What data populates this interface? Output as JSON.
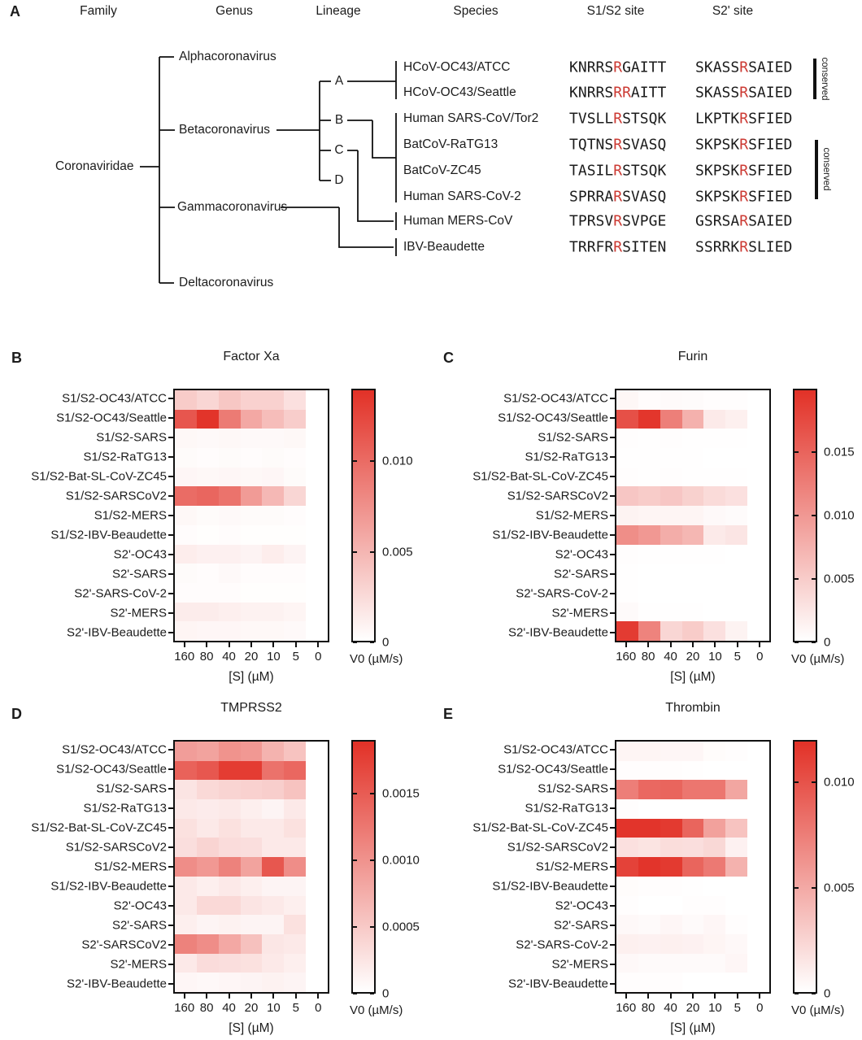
{
  "colors": {
    "heat_max": "#e23127",
    "red_residue": "#cc3a33",
    "ink": "#111111"
  },
  "panel_a": {
    "label": "A",
    "headers": [
      "Family",
      "Genus",
      "Lineage",
      "Species",
      "S1/S2 site",
      "S2' site"
    ],
    "family": "Coronaviridae",
    "genera": [
      "Alphacoronavirus",
      "Betacoronavirus",
      "Gammacoronavirus",
      "Deltacoronavirus"
    ],
    "lineages": [
      "A",
      "B",
      "C",
      "D"
    ],
    "conserved_label": "conserved",
    "species_rows": [
      {
        "species": "HCoV-OC43/ATCC",
        "s1s2": "KNRRSRGAITT",
        "s1s2_red": [
          5
        ],
        "s2prime": "SKASSRSAIED",
        "s2prime_red": [
          5
        ]
      },
      {
        "species": "HCoV-OC43/Seattle",
        "s1s2": "KNRRSRRAITT",
        "s1s2_red": [
          5,
          6
        ],
        "s2prime": "SKASSRSAIED",
        "s2prime_red": [
          5
        ]
      },
      {
        "species": "Human SARS-CoV/Tor2",
        "s1s2": "TVSLLRSTSQK",
        "s1s2_red": [
          5
        ],
        "s2prime": "LKPTKRSFIED",
        "s2prime_red": [
          5
        ]
      },
      {
        "species": "BatCoV-RaTG13",
        "s1s2": "TQTNSRSVASQ",
        "s1s2_red": [
          5
        ],
        "s2prime": "SKPSKRSFIED",
        "s2prime_red": [
          5
        ]
      },
      {
        "species": "BatCoV-ZC45",
        "s1s2": "TASILRSTSQK",
        "s1s2_red": [
          5
        ],
        "s2prime": "SKPSKRSFIED",
        "s2prime_red": [
          5
        ]
      },
      {
        "species": "Human SARS-CoV-2",
        "s1s2": "SPRRARSVASQ",
        "s1s2_red": [
          5
        ],
        "s2prime": "SKPSKRSFIED",
        "s2prime_red": [
          5
        ]
      },
      {
        "species": "Human MERS-CoV",
        "s1s2": "TPRSVRSVPGE",
        "s1s2_red": [
          5
        ],
        "s2prime": "GSRSARSAIED",
        "s2prime_red": [
          5
        ]
      },
      {
        "species": "IBV-Beaudette",
        "s1s2": "TRRFRRSITEN",
        "s1s2_red": [
          5
        ],
        "s2prime": "SSRRKRSLIED",
        "s2prime_red": [
          5
        ]
      }
    ]
  },
  "chart_data": [
    {
      "type": "heatmap",
      "panel_label": "B",
      "title": "Factor Xa",
      "xlabel": "[S] (µM)",
      "x_categories": [
        "160",
        "80",
        "40",
        "20",
        "10",
        "5",
        "0"
      ],
      "colorbar": {
        "label": "V0 (µM/s)",
        "vmin": 0,
        "vmax": 0.014,
        "tick_values": [
          0.01,
          0.005,
          0
        ],
        "tick_labels": [
          "0.010",
          "0.005",
          "0"
        ]
      },
      "rows": [
        {
          "label": "S1/S2-OC43/ATCC",
          "values": [
            0.0035,
            0.0028,
            0.0038,
            0.0031,
            0.0031,
            0.0021,
            0
          ]
        },
        {
          "label": "S1/S2-OC43/Seattle",
          "values": [
            0.0115,
            0.0138,
            0.009,
            0.0059,
            0.0045,
            0.0034,
            0
          ]
        },
        {
          "label": "S1/S2-SARS",
          "values": [
            0.0005,
            0.0004,
            0.0005,
            0.0004,
            0.0004,
            0.0005,
            0
          ]
        },
        {
          "label": "S1/S2-RaTG13",
          "values": [
            0.0003,
            0.0002,
            0.0003,
            0.0002,
            0.0003,
            0.0002,
            0
          ]
        },
        {
          "label": "S1/S2-Bat-SL-CoV-ZC45",
          "values": [
            0.0006,
            0.0005,
            0.0006,
            0.0005,
            0.0006,
            0.0003,
            0
          ]
        },
        {
          "label": "S1/S2-SARSCoV2",
          "values": [
            0.01,
            0.0104,
            0.0095,
            0.0068,
            0.0048,
            0.0028,
            0
          ]
        },
        {
          "label": "S1/S2-MERS",
          "values": [
            0.0005,
            0.0003,
            0.0004,
            0.0003,
            0.0003,
            0.0002,
            0
          ]
        },
        {
          "label": "S1/S2-IBV-Beaudette",
          "values": [
            0.0002,
            0.0001,
            0.0002,
            0.0001,
            0.0001,
            0.0001,
            0
          ]
        },
        {
          "label": "S2'-OC43",
          "values": [
            0.0012,
            0.001,
            0.001,
            0.0008,
            0.0012,
            0.0008,
            0
          ]
        },
        {
          "label": "S2'-SARS",
          "values": [
            0.0003,
            0.0002,
            0.0004,
            0.0002,
            0.0002,
            0.0002,
            0
          ]
        },
        {
          "label": "S2'-SARS-CoV-2",
          "values": [
            0.0002,
            0.0002,
            0.0002,
            0.0001,
            0.0001,
            0.0001,
            0
          ]
        },
        {
          "label": "S2'-MERS",
          "values": [
            0.0013,
            0.0013,
            0.0011,
            0.0009,
            0.0009,
            0.0007,
            0
          ]
        },
        {
          "label": "S2'-IBV-Beaudette",
          "values": [
            0.0007,
            0.0006,
            0.0006,
            0.0005,
            0.0005,
            0.0004,
            0
          ]
        }
      ]
    },
    {
      "type": "heatmap",
      "panel_label": "C",
      "title": "Furin",
      "xlabel": "[S] (µM)",
      "x_categories": [
        "160",
        "80",
        "40",
        "20",
        "10",
        "5",
        "0"
      ],
      "colorbar": {
        "label": "V0 (µM/s)",
        "vmin": 0,
        "vmax": 0.02,
        "tick_values": [
          0.015,
          0.01,
          0.005,
          0
        ],
        "tick_labels": [
          "0.015",
          "0.010",
          "0.005",
          "0"
        ]
      },
      "rows": [
        {
          "label": "S1/S2-OC43/ATCC",
          "values": [
            0.0008,
            0.0003,
            0.0005,
            0.0004,
            0.0002,
            0.0002,
            0
          ]
        },
        {
          "label": "S1/S2-OC43/Seattle",
          "values": [
            0.017,
            0.0195,
            0.0124,
            0.0076,
            0.002,
            0.0015,
            0
          ]
        },
        {
          "label": "S1/S2-SARS",
          "values": [
            0.0002,
            0.0001,
            0.0002,
            0.0001,
            0.0001,
            0.0001,
            0
          ]
        },
        {
          "label": "S1/S2-RaTG13",
          "values": [
            0.0001,
            0.0001,
            0.0001,
            0.0001,
            0,
            0,
            0
          ]
        },
        {
          "label": "S1/S2-Bat-SL-CoV-ZC45",
          "values": [
            0.0002,
            0.0001,
            0.0002,
            0.0001,
            0.0001,
            0.0001,
            0
          ]
        },
        {
          "label": "S1/S2-SARSCoV2",
          "values": [
            0.0055,
            0.005,
            0.0055,
            0.0045,
            0.0035,
            0.003,
            0
          ]
        },
        {
          "label": "S1/S2-MERS",
          "values": [
            0.0012,
            0.001,
            0.001,
            0.001,
            0.0006,
            0.0004,
            0
          ]
        },
        {
          "label": "S1/S2-IBV-Beaudette",
          "values": [
            0.011,
            0.01,
            0.008,
            0.007,
            0.002,
            0.0025,
            0
          ]
        },
        {
          "label": "S2'-OC43",
          "values": [
            0.0002,
            0.0001,
            0.0001,
            0.0001,
            0.0001,
            0,
            0
          ]
        },
        {
          "label": "S2'-SARS",
          "values": [
            0.0001,
            0,
            0,
            0,
            0,
            0,
            0
          ]
        },
        {
          "label": "S2'-SARS-CoV-2",
          "values": [
            0.0001,
            0,
            0,
            0,
            0,
            0,
            0
          ]
        },
        {
          "label": "S2'-MERS",
          "values": [
            0.0005,
            0.0001,
            0.0001,
            0.0001,
            0,
            0,
            0
          ]
        },
        {
          "label": "S2'-IBV-Beaudette",
          "values": [
            0.019,
            0.012,
            0.004,
            0.005,
            0.003,
            0.0012,
            0
          ]
        }
      ]
    },
    {
      "type": "heatmap",
      "panel_label": "D",
      "title": "TMPRSS2",
      "xlabel": "[S] (µM)",
      "x_categories": [
        "160",
        "80",
        "40",
        "20",
        "10",
        "5",
        "0"
      ],
      "colorbar": {
        "label": "V0 (µM/s)",
        "vmin": 0,
        "vmax": 0.0019,
        "tick_values": [
          0.0015,
          0.001,
          0.0005,
          0
        ],
        "tick_labels": [
          "0.0015",
          "0.0010",
          "0.0005",
          "0"
        ]
      },
      "rows": [
        {
          "label": "S1/S2-OC43/ATCC",
          "values": [
            0.0009,
            0.00085,
            0.001,
            0.00095,
            0.0007,
            0.00055,
            0
          ]
        },
        {
          "label": "S1/S2-OC43/Seattle",
          "values": [
            0.00145,
            0.00155,
            0.0018,
            0.0018,
            0.0013,
            0.0014,
            0
          ]
        },
        {
          "label": "S1/S2-SARS",
          "values": [
            0.00025,
            0.00035,
            0.0004,
            0.00042,
            0.00045,
            0.00055,
            0
          ]
        },
        {
          "label": "S1/S2-RaTG13",
          "values": [
            0.0002,
            0.00018,
            0.0002,
            0.00015,
            0.0001,
            0.0002,
            0
          ]
        },
        {
          "label": "S1/S2-Bat-SL-CoV-ZC45",
          "values": [
            0.00028,
            0.0002,
            0.00028,
            0.0002,
            0.0002,
            0.00028,
            0
          ]
        },
        {
          "label": "S1/S2-SARSCoV2",
          "values": [
            0.0003,
            0.0004,
            0.00032,
            0.0003,
            0.0002,
            0.0002,
            0
          ]
        },
        {
          "label": "S1/S2-MERS",
          "values": [
            0.00105,
            0.00095,
            0.00115,
            0.00085,
            0.00155,
            0.00105,
            0
          ]
        },
        {
          "label": "S1/S2-IBV-Beaudette",
          "values": [
            0.0002,
            0.00015,
            0.0002,
            0.00015,
            0.0001,
            0.0001,
            0
          ]
        },
        {
          "label": "S2'-OC43",
          "values": [
            0.0002,
            0.00035,
            0.00035,
            0.00025,
            0.0002,
            0.00015,
            0
          ]
        },
        {
          "label": "S2'-SARS",
          "values": [
            0.00015,
            0.0001,
            0.00012,
            0.0001,
            0.0001,
            0.00028,
            0
          ]
        },
        {
          "label": "S2'-SARSCoV2",
          "values": [
            0.00115,
            0.00105,
            0.0008,
            0.00057,
            0.00023,
            0.0002,
            0
          ]
        },
        {
          "label": "S2'-MERS",
          "values": [
            0.0002,
            0.00032,
            0.0003,
            0.00028,
            0.0002,
            0.00015,
            0
          ]
        },
        {
          "label": "S2'-IBV-Beaudette",
          "values": [
            8e-05,
            6e-05,
            8e-05,
            0.0001,
            0.00012,
            0.0001,
            0
          ]
        }
      ]
    },
    {
      "type": "heatmap",
      "panel_label": "E",
      "title": "Thrombin",
      "xlabel": "[S] (µM)",
      "x_categories": [
        "160",
        "80",
        "40",
        "20",
        "10",
        "5",
        "0"
      ],
      "colorbar": {
        "label": "V0 (µM/s)",
        "vmin": 0,
        "vmax": 0.012,
        "tick_values": [
          0.01,
          0.005,
          0
        ],
        "tick_labels": [
          "0.010",
          "0.005",
          "0"
        ]
      },
      "rows": [
        {
          "label": "S1/S2-OC43/ATCC",
          "values": [
            0.0006,
            0.0006,
            0.0005,
            0.0005,
            0.0002,
            0.0001,
            0
          ]
        },
        {
          "label": "S1/S2-OC43/Seattle",
          "values": [
            0.0001,
            0.0001,
            0.0001,
            5e-05,
            0,
            0,
            0
          ]
        },
        {
          "label": "S1/S2-SARS",
          "values": [
            0.0075,
            0.0088,
            0.009,
            0.008,
            0.008,
            0.0052,
            0
          ]
        },
        {
          "label": "S1/S2-RaTG13",
          "values": [
            0.0001,
            0,
            0,
            0,
            0,
            0,
            0
          ]
        },
        {
          "label": "S1/S2-Bat-SL-CoV-ZC45",
          "values": [
            0.0118,
            0.0118,
            0.0115,
            0.009,
            0.0055,
            0.0035,
            0
          ]
        },
        {
          "label": "S1/S2-SARSCoV2",
          "values": [
            0.0018,
            0.0016,
            0.002,
            0.0019,
            0.0023,
            0.0008,
            0
          ]
        },
        {
          "label": "S1/S2-MERS",
          "values": [
            0.011,
            0.0118,
            0.0115,
            0.009,
            0.0078,
            0.0045,
            0
          ]
        },
        {
          "label": "S1/S2-IBV-Beaudette",
          "values": [
            0.0002,
            0.0001,
            0.0001,
            5e-05,
            0,
            0,
            0
          ]
        },
        {
          "label": "S2'-OC43",
          "values": [
            0.0001,
            0,
            0,
            0.0001,
            0.0001,
            0,
            0
          ]
        },
        {
          "label": "S2'-SARS",
          "values": [
            0.0004,
            0.0003,
            0.0005,
            0.0003,
            0.0005,
            0.0001,
            0
          ]
        },
        {
          "label": "S2'-SARS-CoV-2",
          "values": [
            0.0009,
            0.0008,
            0.0009,
            0.0008,
            0.0006,
            0.0004,
            0
          ]
        },
        {
          "label": "S2'-MERS",
          "values": [
            0.0004,
            0.0003,
            0.0003,
            0.0003,
            0.0003,
            0.0005,
            0
          ]
        },
        {
          "label": "S2'-IBV-Beaudette",
          "values": [
            0.0001,
            0.0001,
            0.0001,
            0,
            0,
            0,
            0
          ]
        }
      ]
    }
  ]
}
